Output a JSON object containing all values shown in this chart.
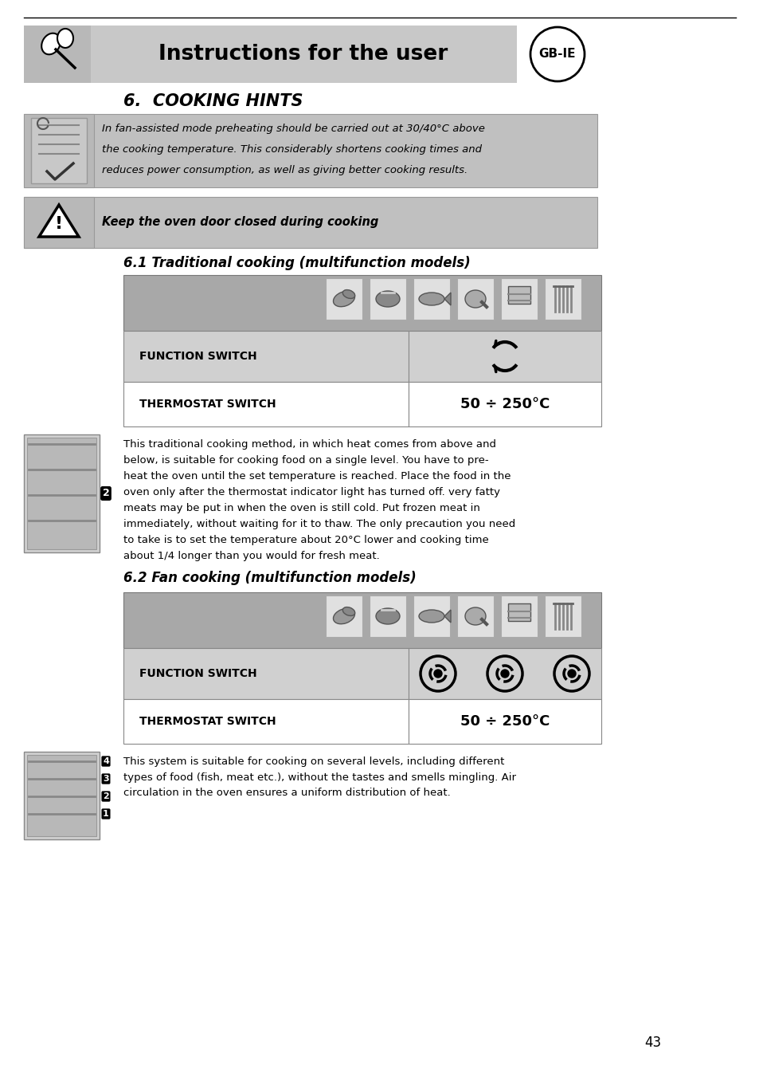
{
  "page_bg": "#ffffff",
  "header_bg": "#c8c8c8",
  "header_text": "Instructions for the user",
  "gbIE_text": "GB-IE",
  "section_title": "6.  COOKING HINTS",
  "hint_text_lines": [
    "In fan-assisted mode preheating should be carried out at 30/40°C above",
    "the cooking temperature. This considerably shortens cooking times and",
    "reduces power consumption, as well as giving better cooking results."
  ],
  "warning_text": "Keep the oven door closed during cooking",
  "subsection1": "6.1 Traditional cooking (multifunction models)",
  "subsection2": "6.2 Fan cooking (multifunction models)",
  "function_switch_label": "FUNCTION SWITCH",
  "thermostat_switch_label": "THERMOSTAT SWITCH",
  "thermostat_value": "50 ÷ 250°C",
  "para1_lines": [
    "This traditional cooking method, in which heat comes from above and",
    "below, is suitable for cooking food on a single level. You have to pre-",
    "heat the oven until the set temperature is reached. Place the food in the",
    "oven only after the thermostat indicator light has turned off. very fatty",
    "meats may be put in when the oven is still cold. Put frozen meat in",
    "immediately, without waiting for it to thaw. The only precaution you need",
    "to take is to set the temperature about 20°C lower and cooking time",
    "about 1/4 longer than you would for fresh meat."
  ],
  "para2_lines": [
    "This system is suitable for cooking on several levels, including different",
    "types of food (fish, meat etc.), without the tastes and smells mingling. Air",
    "circulation in the oven ensures a uniform distribution of heat."
  ],
  "page_number": "43",
  "table_dark_bg": "#a8a8a8",
  "table_mid_bg": "#c0c0c0",
  "table_light_bg": "#d0d0d0",
  "icon_cell_bg": "#e0e0e0",
  "white": "#ffffff",
  "chef_bg": "#b8b8b8",
  "warn_bg": "#b8b8b8"
}
